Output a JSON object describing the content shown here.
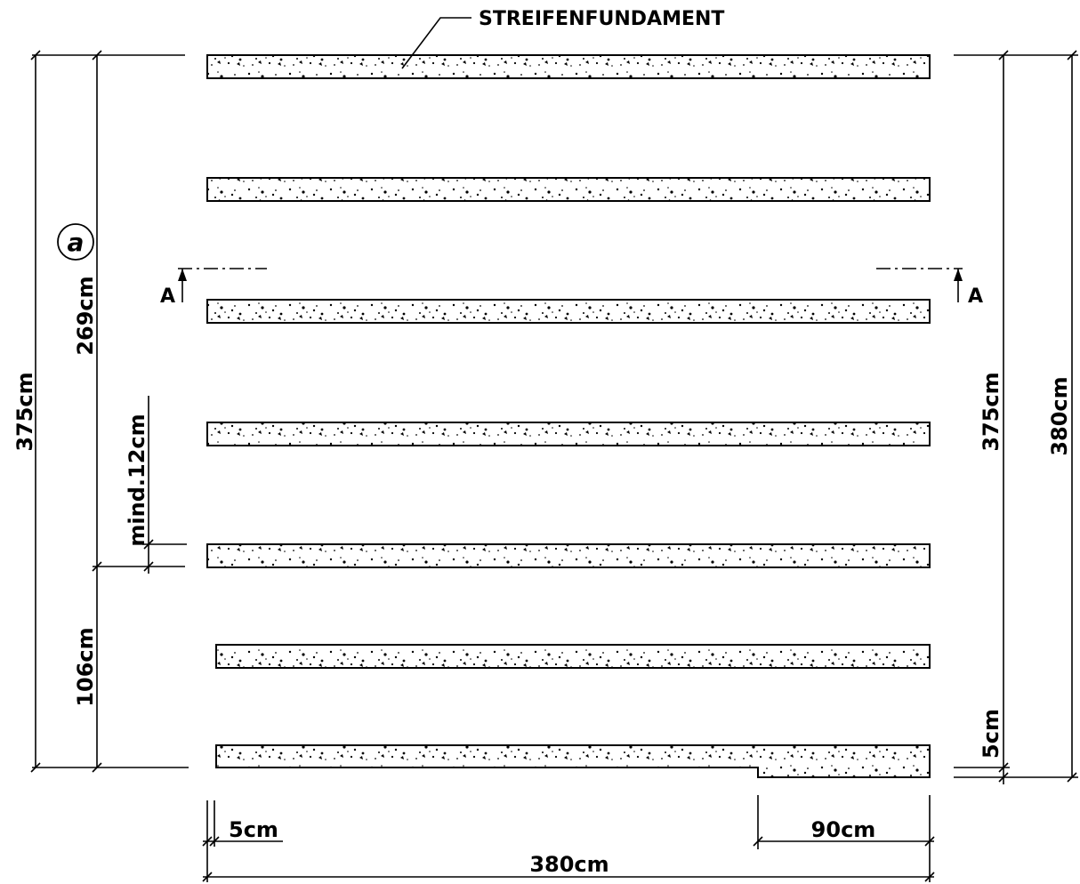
{
  "title_label": "STREIFENFUNDAMENT",
  "section_marker": "A",
  "circle_label": "a",
  "dimensions": {
    "left_outer": "375cm",
    "left_upper": "269cm",
    "left_lower": "106cm",
    "left_min_gap": "mind.12cm",
    "right_inner": "375cm",
    "right_outer": "380cm",
    "right_offset": "5cm",
    "bottom_offset": "5cm",
    "bottom_step": "90cm",
    "bottom_total": "380cm"
  },
  "strip_count": 7,
  "colors": {
    "line": "#000000",
    "background": "#ffffff"
  }
}
